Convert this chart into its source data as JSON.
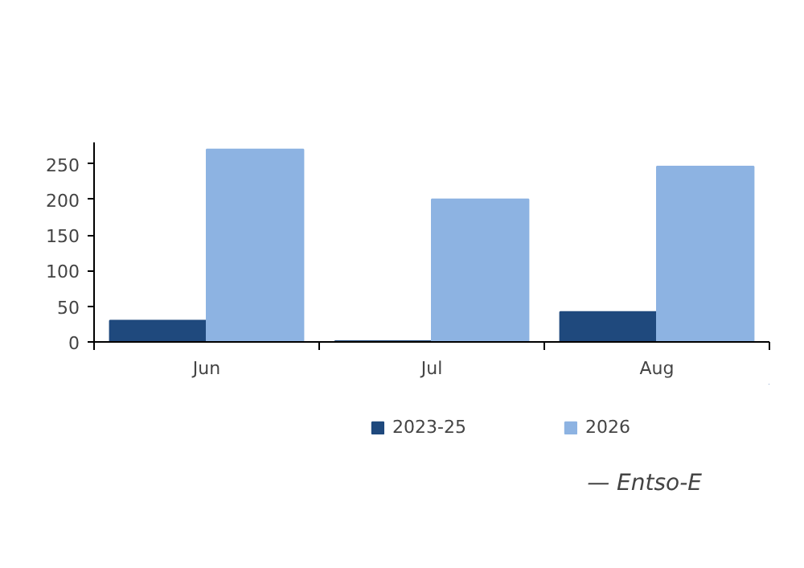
{
  "chart_data": {
    "type": "bar",
    "categories": [
      "Jun",
      "Jul",
      "Aug"
    ],
    "series": [
      {
        "name": "2023-25",
        "color": "#1f497d",
        "values": [
          30,
          1,
          42
        ]
      },
      {
        "name": "2026",
        "color": "#8db3e2",
        "values": [
          270,
          200,
          246
        ]
      }
    ],
    "ylim": [
      0,
      280
    ],
    "yticks": [
      0,
      50,
      100,
      150,
      200,
      250
    ],
    "grid": false,
    "legend": "bottom",
    "annotations": [
      "— Entso-E"
    ]
  }
}
